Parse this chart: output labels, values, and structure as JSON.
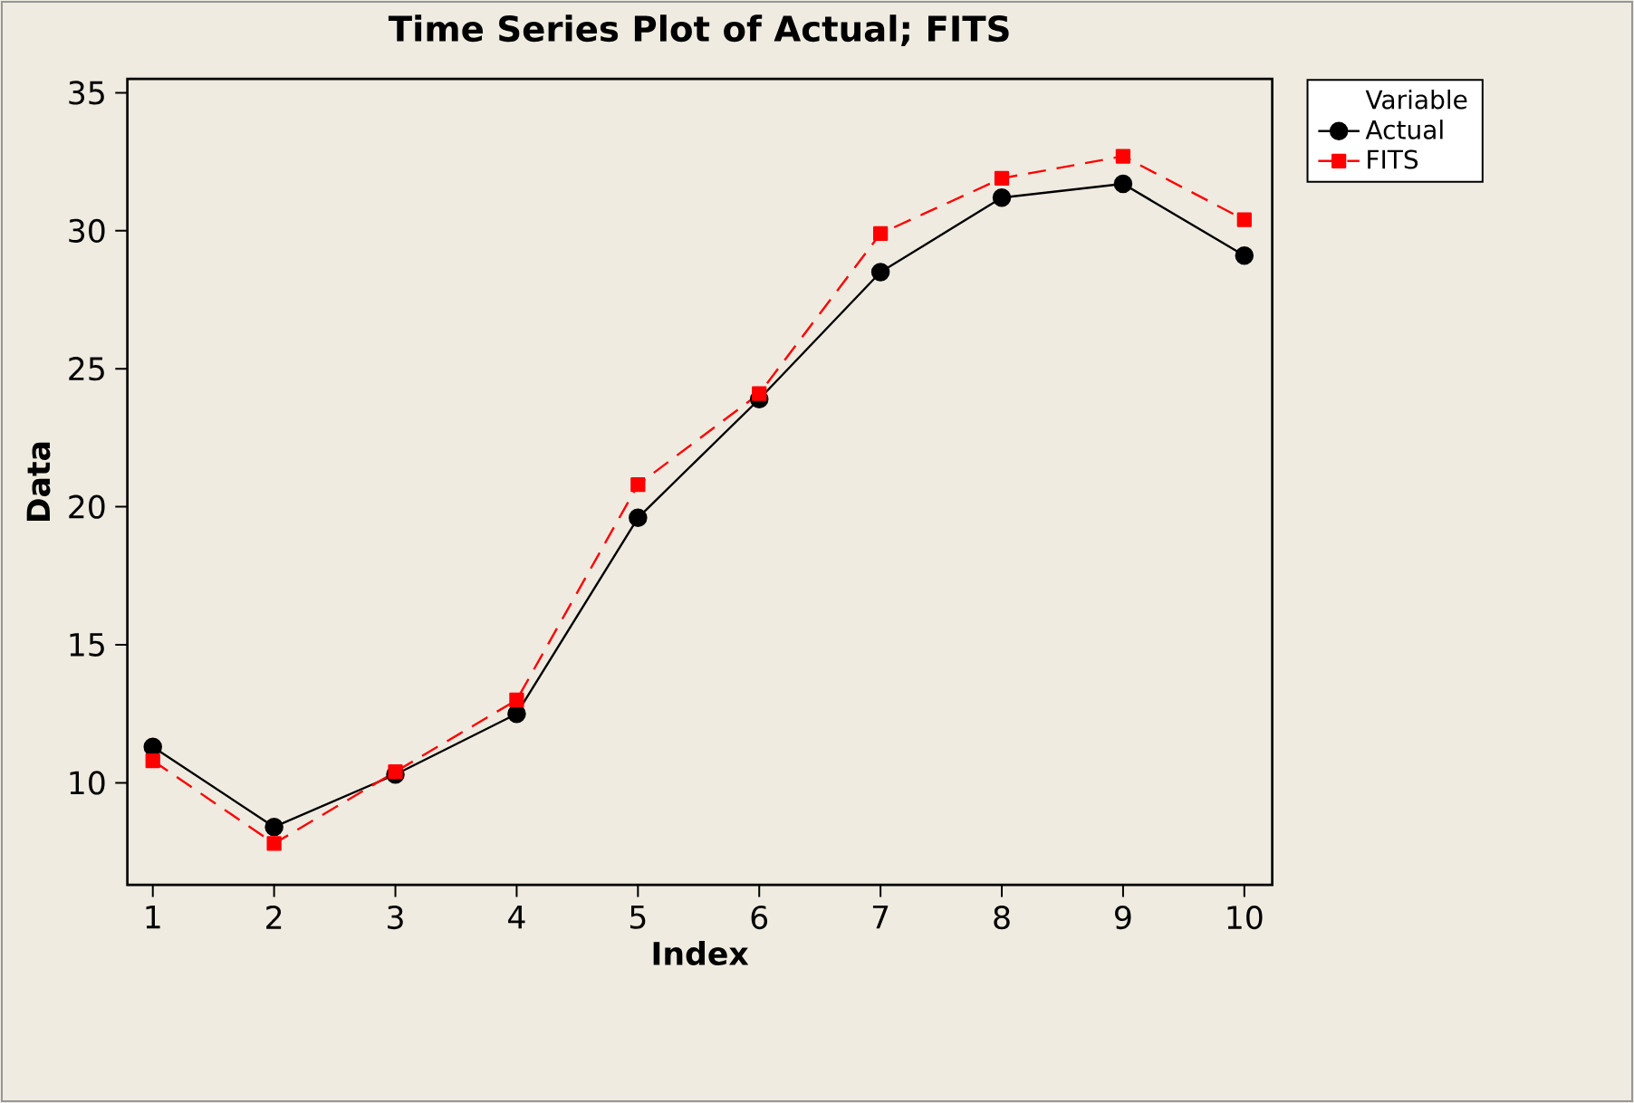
{
  "chart_data": {
    "type": "line",
    "title": "Time Series Plot of Actual; FITS",
    "xlabel": "Index",
    "ylabel": "Data",
    "legend_title": "Variable",
    "legend": "right",
    "x": [
      1,
      2,
      3,
      4,
      5,
      6,
      7,
      8,
      9,
      10
    ],
    "xlim": [
      0.79,
      10.23
    ],
    "xticks": [
      1,
      2,
      3,
      4,
      5,
      6,
      7,
      8,
      9,
      10
    ],
    "ylim": [
      6.3,
      35.5
    ],
    "yticks": [
      10,
      15,
      20,
      25,
      30,
      35
    ],
    "grid": false,
    "series": [
      {
        "name": "Actual",
        "color": "#000000",
        "marker": "circle",
        "line_style": "solid",
        "values": [
          11.3,
          8.4,
          10.3,
          12.5,
          19.6,
          23.9,
          28.5,
          31.2,
          31.7,
          29.1
        ]
      },
      {
        "name": "FITS",
        "color": "#ff0000",
        "marker": "square",
        "line_style": "dashed",
        "values": [
          10.8,
          7.8,
          10.4,
          13.0,
          20.8,
          24.1,
          29.9,
          31.9,
          32.7,
          30.4
        ]
      }
    ]
  }
}
